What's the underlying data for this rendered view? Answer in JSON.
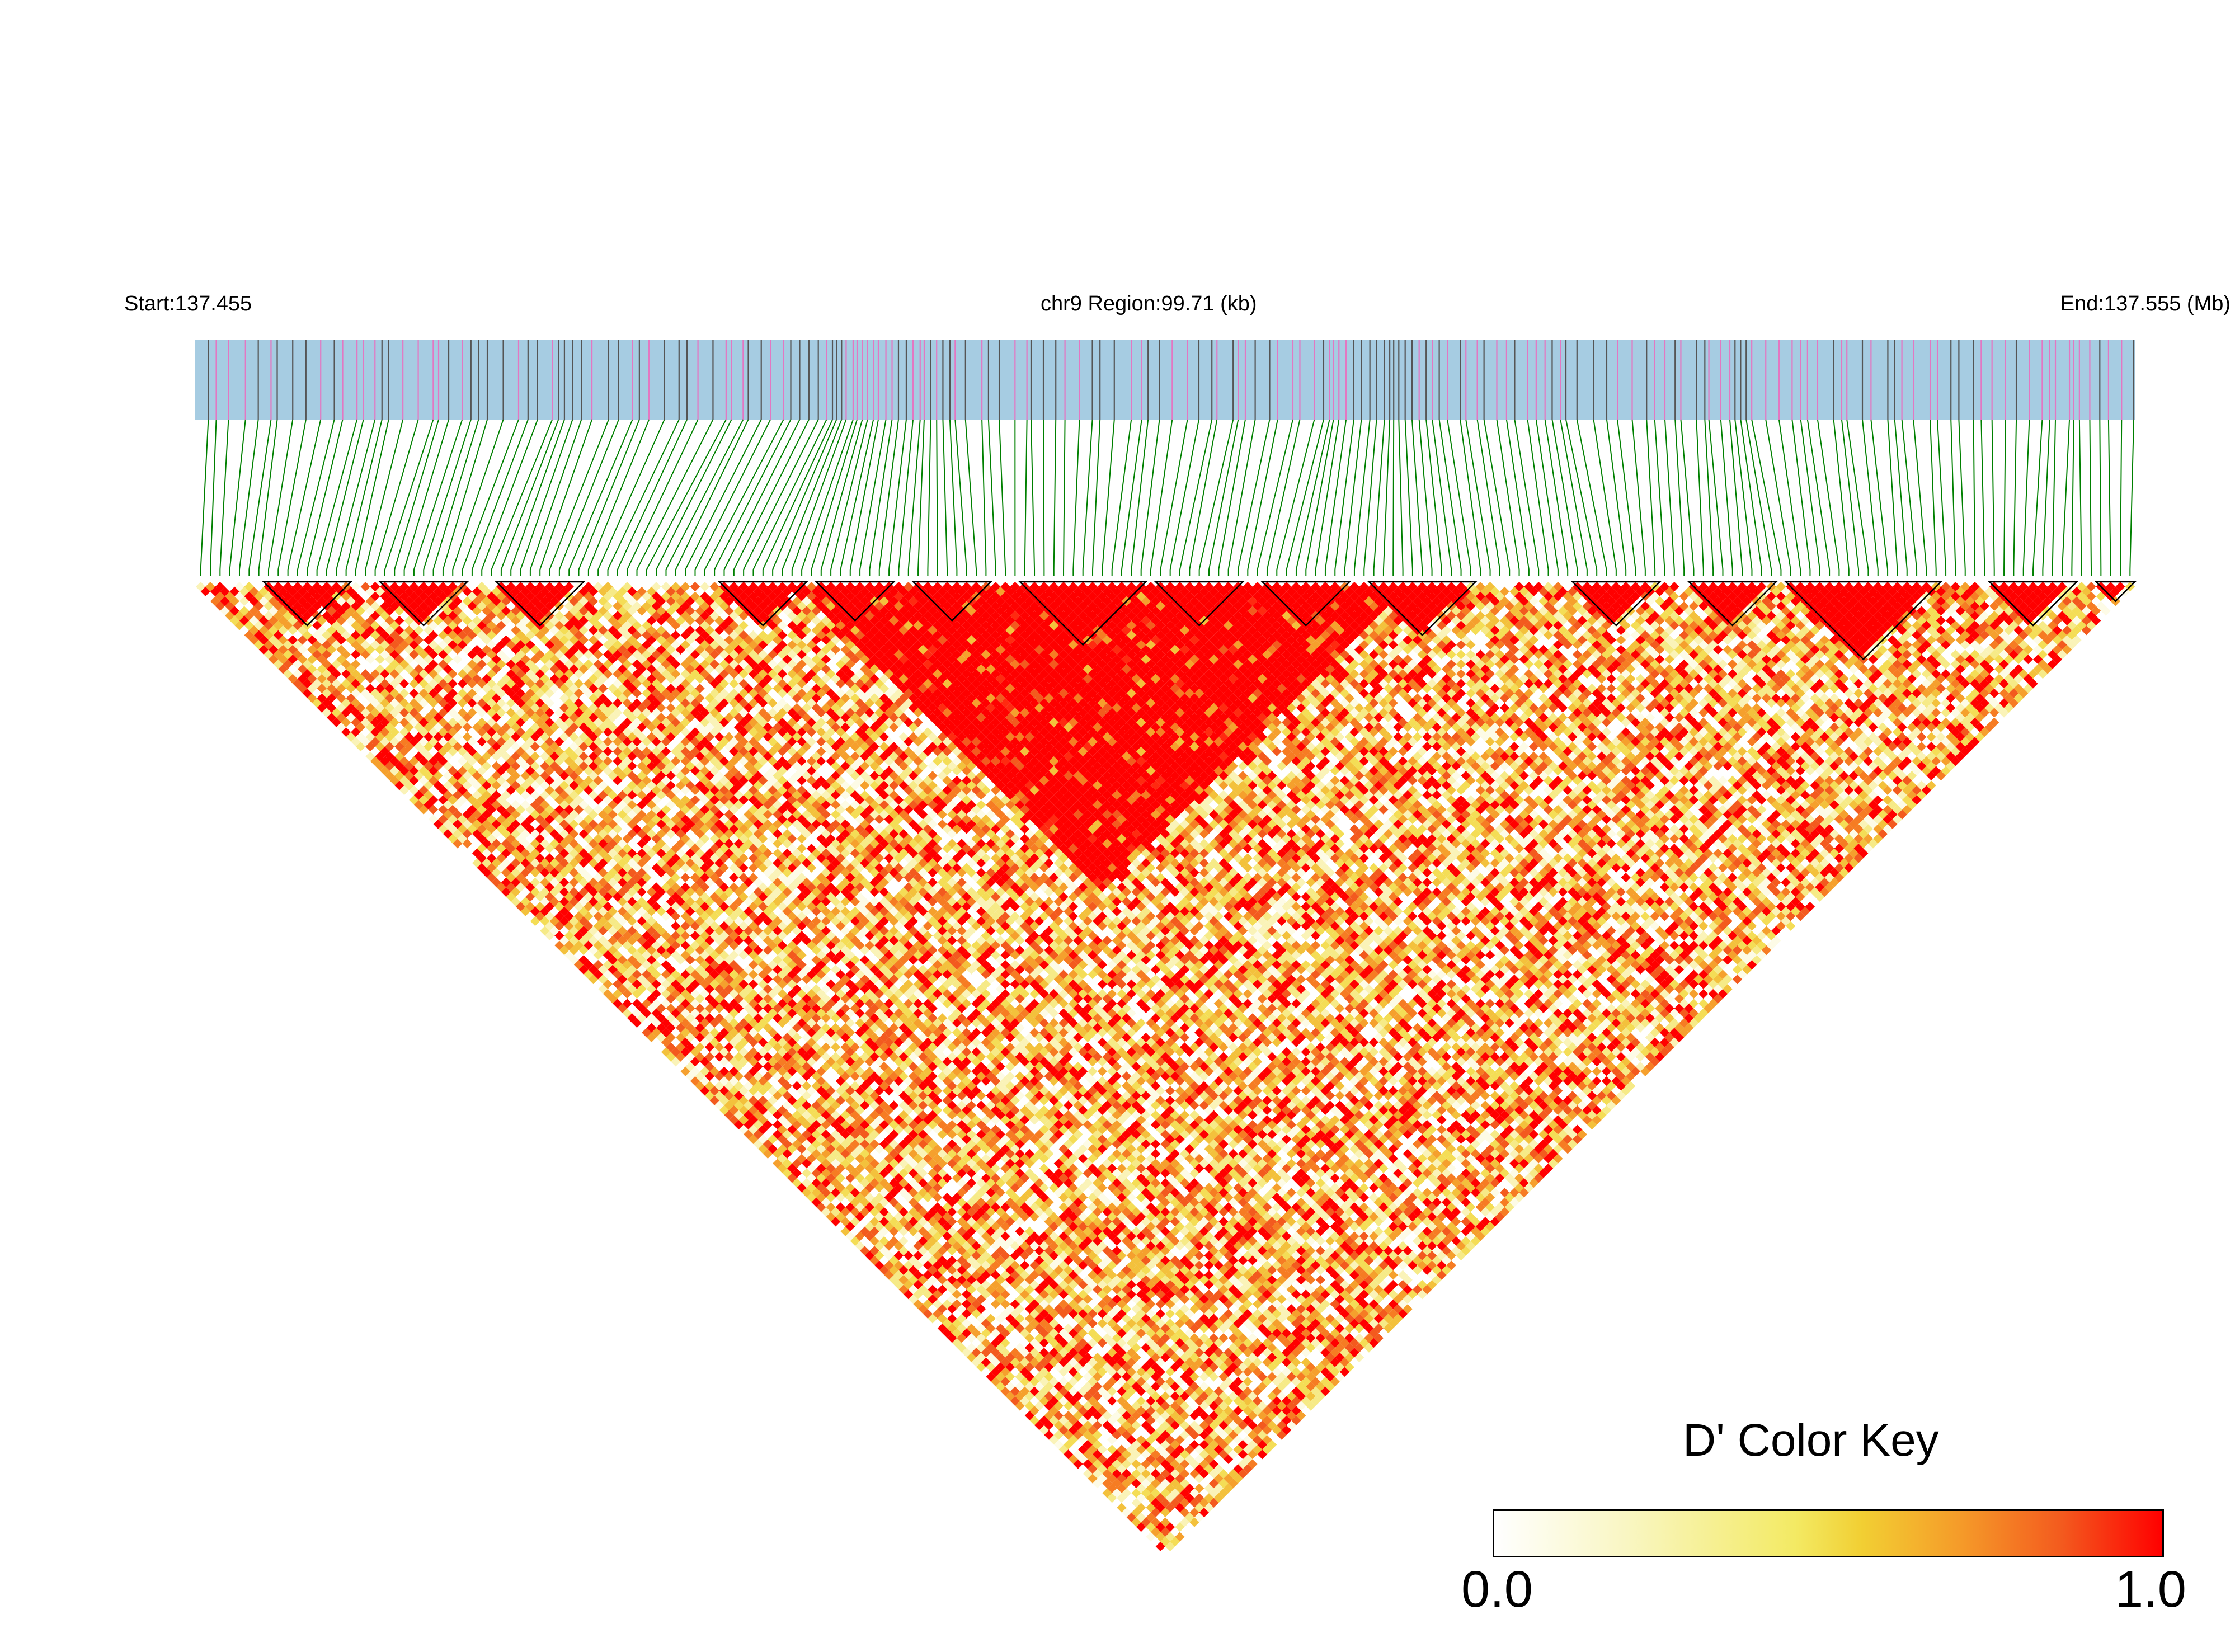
{
  "header": {
    "start_label": "Start:137.455",
    "region_label": "chr9 Region:99.71 (kb)",
    "end_label": "End:137.555 (Mb)"
  },
  "chart_data": {
    "type": "heatmap",
    "description_of_values": "pairwise LD D' between markers",
    "chromosome": "chr9",
    "region_start_mb": 137.455,
    "region_end_mb": 137.555,
    "region_size_kb": 99.71,
    "value_range": [
      0.0,
      1.0
    ],
    "marker_count": 200
  },
  "color_key": {
    "title": "D' Color Key",
    "min_label": "0.0",
    "max_label": "1.0"
  },
  "colors": {
    "track_fill": "#a6cce2",
    "marker_dark": "#555555",
    "marker_pink": "#e377c2",
    "connector": "#008000",
    "high_ld": "#ff0000"
  }
}
